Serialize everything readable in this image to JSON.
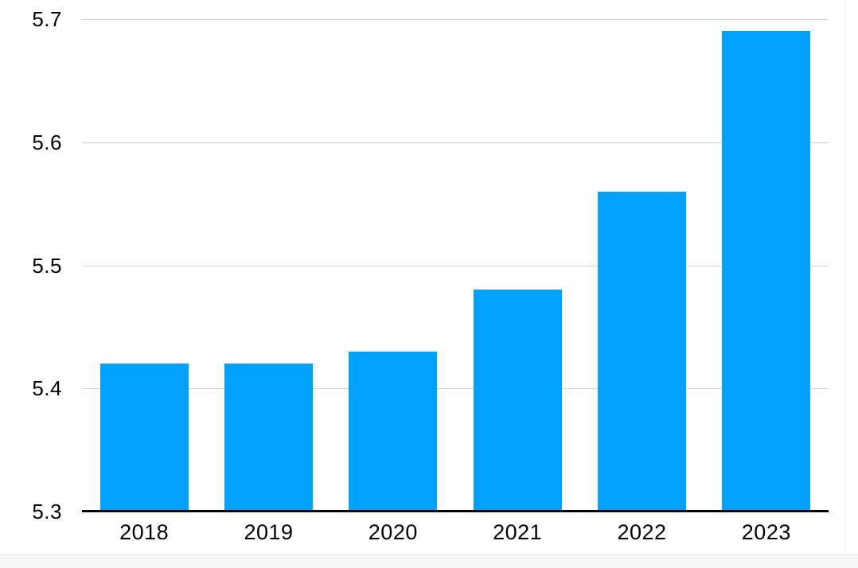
{
  "chart_data": {
    "type": "bar",
    "categories": [
      "2018",
      "2019",
      "2020",
      "2021",
      "2022",
      "2023"
    ],
    "values": [
      5.42,
      5.42,
      5.43,
      5.48,
      5.56,
      5.69
    ],
    "title": "",
    "xlabel": "",
    "ylabel": "",
    "ylim": [
      5.3,
      5.7
    ],
    "yticks": [
      5.3,
      5.4,
      5.5,
      5.6,
      5.7
    ],
    "ytick_labels": [
      "5.3",
      "5.4",
      "5.5",
      "5.6",
      "5.7"
    ],
    "grid": true,
    "legend": false,
    "colors": {
      "bar": "#00A1FF",
      "gridline": "#d4d4d4",
      "axis_line": "#000000",
      "tick_text": "#000000"
    }
  },
  "footer": {
    "background": "#f7f7f7",
    "border": "#e3e3e3"
  }
}
